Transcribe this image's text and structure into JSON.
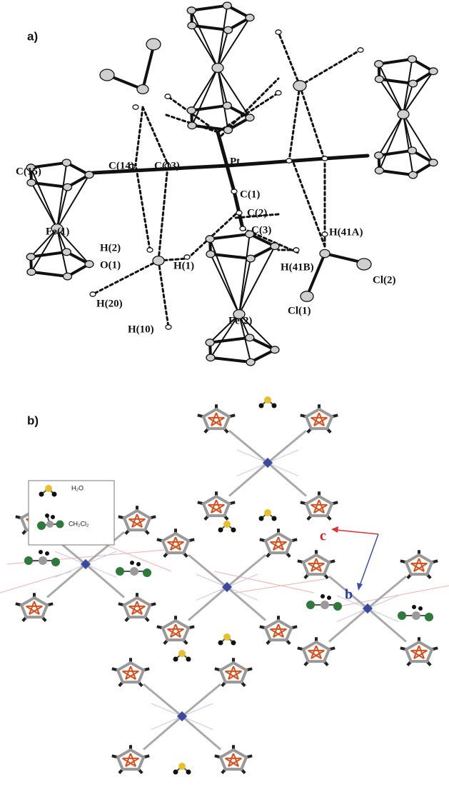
{
  "panel_a": {
    "label": "a)",
    "atoms": [
      "C(15)",
      "C(14)",
      "C(13)",
      "Pt",
      "Fe(1)",
      "C(1)",
      "C(2)",
      "C(3)",
      "H(41A)",
      "H(2)",
      "O(1)",
      "H(1)",
      "H(41B)",
      "Cl(2)",
      "H(20)",
      "Fe(2)",
      "Cl(1)",
      "H(10)"
    ]
  },
  "panel_b": {
    "label": "b)",
    "legend": [
      "H₂O",
      "CH₂Cl₂"
    ],
    "axes": [
      "c",
      "b"
    ]
  }
}
